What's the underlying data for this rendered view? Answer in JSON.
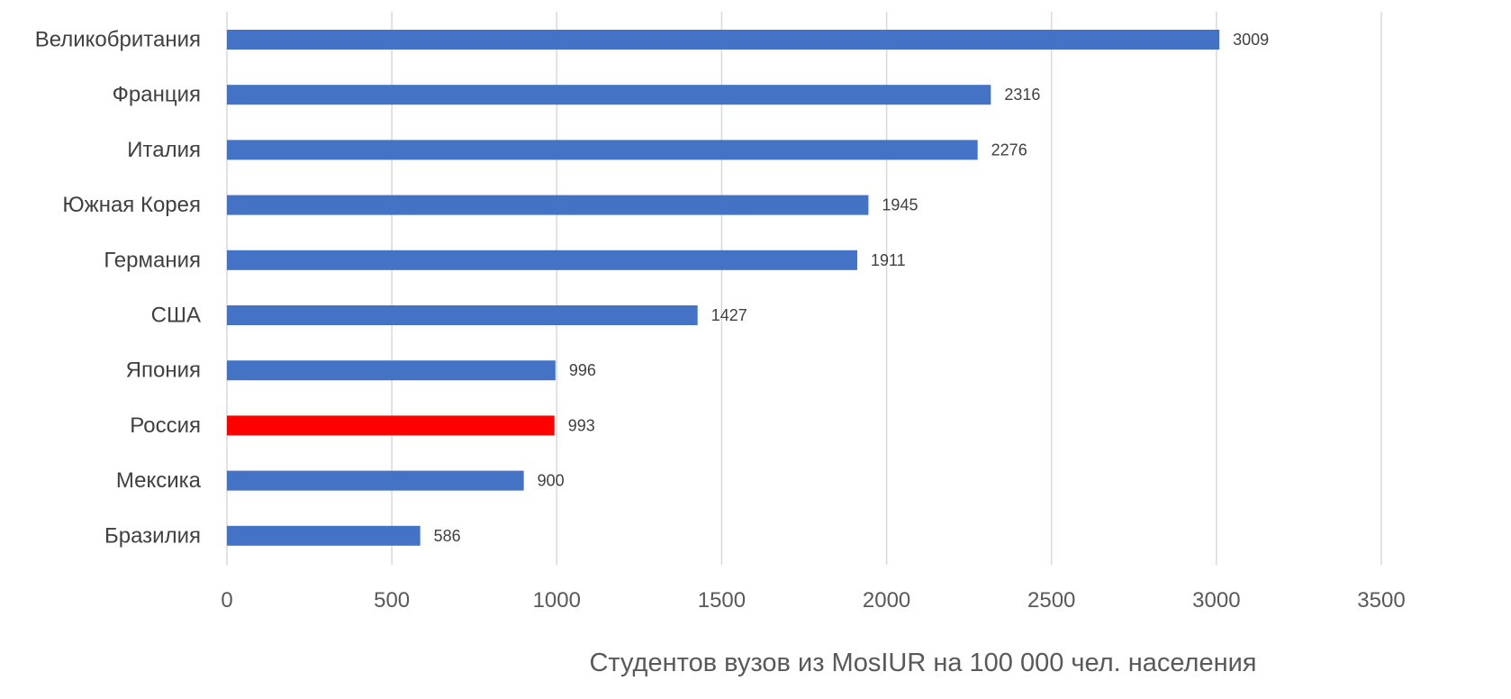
{
  "chart_data": {
    "type": "bar",
    "orientation": "horizontal",
    "title": "",
    "xlabel": "Студентов вузов из MosIUR на 100 000 чел. населения",
    "ylabel": "",
    "xlim": [
      0,
      3500
    ],
    "xticks": [
      0,
      500,
      1000,
      1500,
      2000,
      2500,
      3000,
      3500
    ],
    "grid": true,
    "legend": "none",
    "categories": [
      "Великобритания",
      "Франция",
      "Италия",
      "Южная Корея",
      "Германия",
      "США",
      "Япония",
      "Россия",
      "Мексика",
      "Бразилия"
    ],
    "values": [
      3009,
      2316,
      2276,
      1945,
      1911,
      1427,
      996,
      993,
      900,
      586
    ],
    "colors": {
      "default": "#4472c4",
      "highlight": "#ff0000"
    },
    "highlight_category": "Россия"
  }
}
